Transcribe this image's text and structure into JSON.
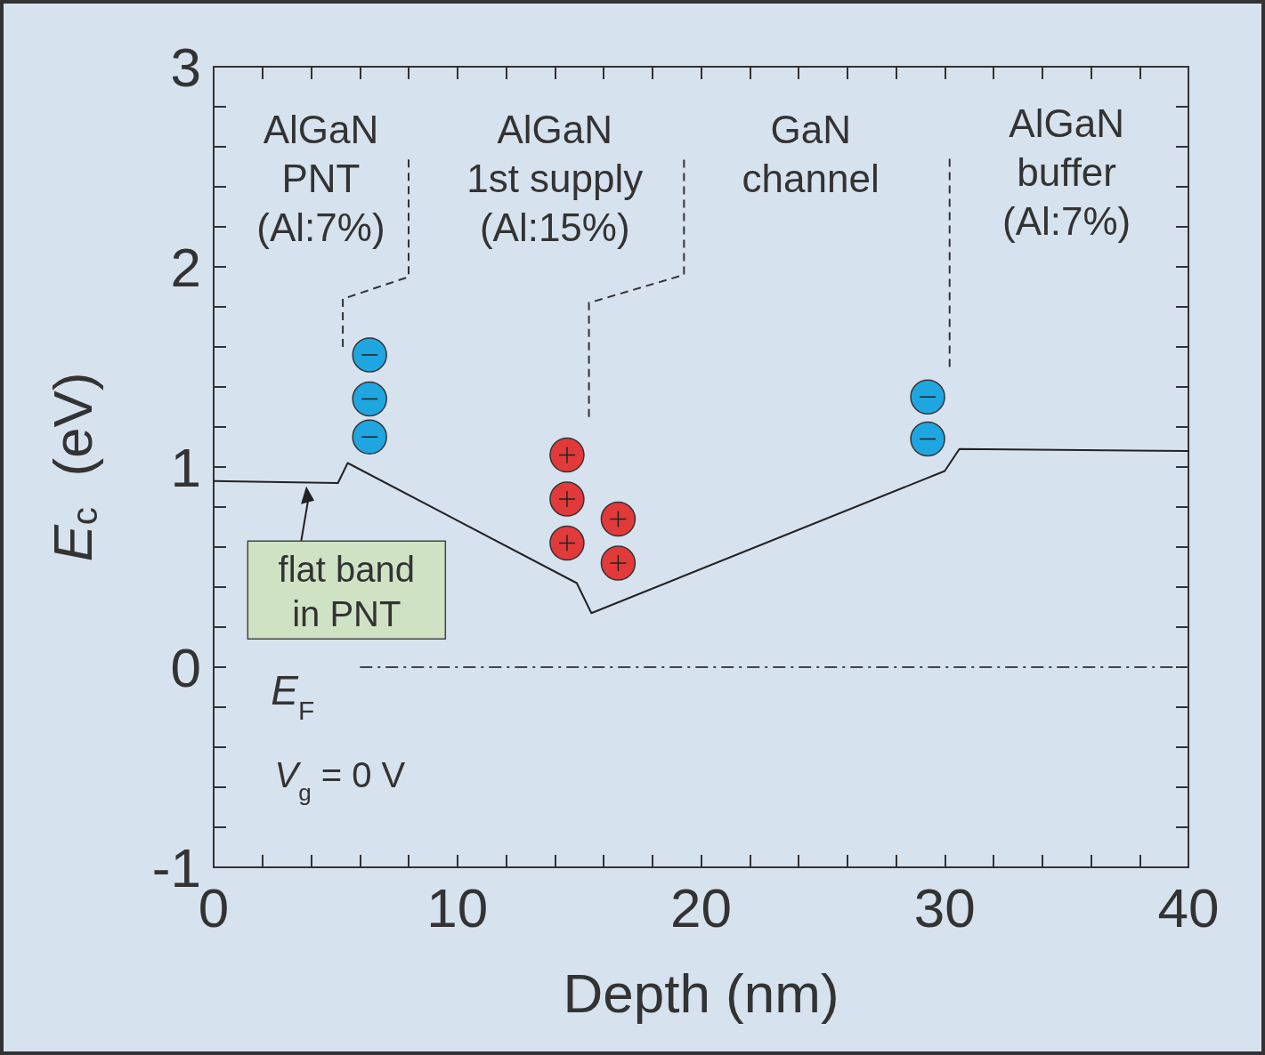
{
  "chart_data": {
    "type": "line",
    "xlabel": "Depth (nm)",
    "ylabel": "E$_{c}$  (eV)",
    "x": [
      0,
      5.1,
      5.5,
      14.9,
      15.5,
      30.0,
      30.6,
      40
    ],
    "series": [
      {
        "color": "#222222",
        "values": [
          0.93,
          0.92,
          1.02,
          0.42,
          0.27,
          0.98,
          1.09,
          1.08
        ]
      }
    ],
    "xlim": [
      0,
      40
    ],
    "ylim": [
      -1,
      3
    ],
    "xticks": [
      0,
      {
        "value": 2,
        "label": null
      },
      {
        "value": 4,
        "label": null
      },
      {
        "value": 6,
        "label": null
      },
      {
        "value": 8,
        "label": null
      },
      10,
      {
        "value": 12,
        "label": null
      },
      {
        "value": 14,
        "label": null
      },
      {
        "value": 16,
        "label": null
      },
      {
        "value": 18,
        "label": null
      },
      20,
      {
        "value": 22,
        "label": null
      },
      {
        "value": 24,
        "label": null
      },
      {
        "value": 26,
        "label": null
      },
      {
        "value": 28,
        "label": null
      },
      30,
      {
        "value": 32,
        "label": null
      },
      {
        "value": 34,
        "label": null
      },
      {
        "value": 36,
        "label": null
      },
      {
        "value": 38,
        "label": null
      },
      40
    ],
    "yticks": [
      -1,
      {
        "value": -0.8,
        "label": null
      },
      {
        "value": -0.6,
        "label": null
      },
      {
        "value": -0.4,
        "label": null
      },
      {
        "value": -0.2,
        "label": null
      },
      0,
      {
        "value": 0.2,
        "label": null
      },
      {
        "value": 0.4,
        "label": null
      },
      {
        "value": 0.6,
        "label": null
      },
      {
        "value": 0.8,
        "label": null
      },
      1,
      {
        "value": 1.2,
        "label": null
      },
      {
        "value": 1.4,
        "label": null
      },
      {
        "value": 1.6,
        "label": null
      },
      {
        "value": 1.8,
        "label": null
      },
      2,
      {
        "value": 2.2,
        "label": null
      },
      {
        "value": 2.4,
        "label": null
      },
      {
        "value": 2.6,
        "label": null
      },
      {
        "value": 2.8,
        "label": null
      },
      3
    ],
    "ref_lines": [
      {
        "axis": "y",
        "value": 0,
        "label": "E$_{F}$",
        "color": "#444444",
        "line_style": "dashed"
      }
    ],
    "annotations": [
      "AlGaN\nPNT\n(Al:7%)",
      "AlGaN\n1st supply\n(Al:15%)",
      "GaN\nchannel",
      "AlGaN\nbuffer\n(Al:7%)",
      {
        "text": "flat band in PNT",
        "x": 3.8,
        "y": 0.93
      },
      "V$_{g}$ = 0 V"
    ],
    "grid": false,
    "marker": "none",
    "line_style": "solid"
  }
}
